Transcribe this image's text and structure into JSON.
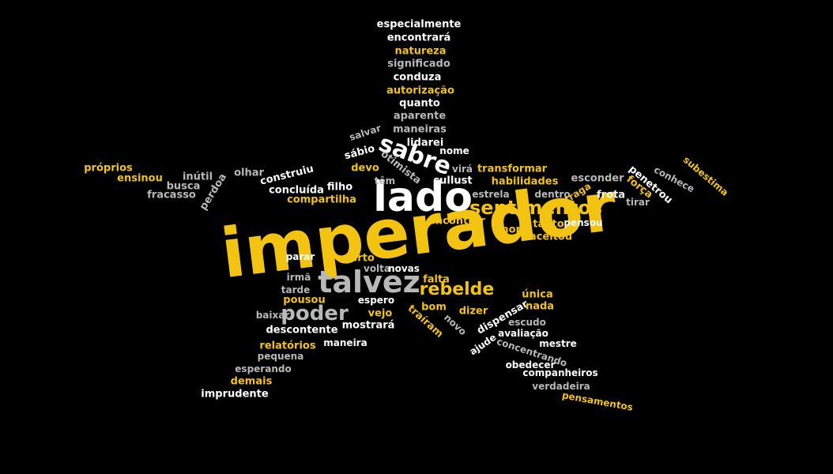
{
  "cloud": {
    "words": [
      {
        "text": "imperador",
        "color": "yellow"
      },
      {
        "text": "lado",
        "color": "white"
      },
      {
        "text": "talvez",
        "color": "gray"
      },
      {
        "text": "sentimentos",
        "color": "yellow"
      },
      {
        "text": "sabre",
        "color": "white"
      },
      {
        "text": "rebelde",
        "color": "yellow"
      },
      {
        "text": "poder",
        "color": "gray"
      },
      {
        "text": "especialmente",
        "color": "white"
      },
      {
        "text": "encontrará",
        "color": "white"
      },
      {
        "text": "natureza",
        "color": "yellow"
      },
      {
        "text": "significado",
        "color": "gray"
      },
      {
        "text": "conduza",
        "color": "white"
      },
      {
        "text": "autorização",
        "color": "yellow"
      },
      {
        "text": "quanto",
        "color": "white"
      },
      {
        "text": "aparente",
        "color": "gray"
      },
      {
        "text": "maneiras",
        "color": "gray"
      },
      {
        "text": "salvar",
        "color": "gray"
      },
      {
        "text": "lidarei",
        "color": "white"
      },
      {
        "text": "nome",
        "color": "white"
      },
      {
        "text": "sábio",
        "color": "white"
      },
      {
        "text": "otimista",
        "color": "gray"
      },
      {
        "text": "virá",
        "color": "gray"
      },
      {
        "text": "transformar",
        "color": "yellow"
      },
      {
        "text": "próprios",
        "color": "yellow"
      },
      {
        "text": "ensinou",
        "color": "yellow"
      },
      {
        "text": "inútil",
        "color": "gray"
      },
      {
        "text": "olhar",
        "color": "gray"
      },
      {
        "text": "construiu",
        "color": "white"
      },
      {
        "text": "devo",
        "color": "yellow"
      },
      {
        "text": "têm",
        "color": "gray"
      },
      {
        "text": "sullust",
        "color": "white"
      },
      {
        "text": "habilidades",
        "color": "yellow"
      },
      {
        "text": "esconder",
        "color": "gray"
      },
      {
        "text": "penetrou",
        "color": "white"
      },
      {
        "text": "conhece",
        "color": "gray"
      },
      {
        "text": "subestima",
        "color": "yellow"
      },
      {
        "text": "busca",
        "color": "gray"
      },
      {
        "text": "fracasso",
        "color": "gray"
      },
      {
        "text": "perdoa",
        "color": "gray"
      },
      {
        "text": "filho",
        "color": "white"
      },
      {
        "text": "concluída",
        "color": "white"
      },
      {
        "text": "compartilha",
        "color": "yellow"
      },
      {
        "text": "estrela",
        "color": "gray"
      },
      {
        "text": "dentro",
        "color": "gray"
      },
      {
        "text": "traga",
        "color": "yellow"
      },
      {
        "text": "frota",
        "color": "white"
      },
      {
        "text": "força",
        "color": "yellow"
      },
      {
        "text": "tirar",
        "color": "gray"
      },
      {
        "text": "pensou",
        "color": "white"
      },
      {
        "text": "encontrar",
        "color": "yellow"
      },
      {
        "text": "tanto",
        "color": "yellow"
      },
      {
        "text": "morte",
        "color": "yellow"
      },
      {
        "text": "aceitou",
        "color": "yellow"
      },
      {
        "text": "parar",
        "color": "white"
      },
      {
        "text": "perto",
        "color": "yellow"
      },
      {
        "text": "volta",
        "color": "gray"
      },
      {
        "text": "novas",
        "color": "white"
      },
      {
        "text": "irmã",
        "color": "gray"
      },
      {
        "text": "tarde",
        "color": "gray"
      },
      {
        "text": "falta",
        "color": "yellow"
      },
      {
        "text": "única",
        "color": "yellow"
      },
      {
        "text": "pousou",
        "color": "yellow"
      },
      {
        "text": "espero",
        "color": "white"
      },
      {
        "text": "bom",
        "color": "yellow"
      },
      {
        "text": "dizer",
        "color": "yellow"
      },
      {
        "text": "nada",
        "color": "yellow"
      },
      {
        "text": "baixar",
        "color": "gray"
      },
      {
        "text": "vejo",
        "color": "yellow"
      },
      {
        "text": "traíram",
        "color": "yellow"
      },
      {
        "text": "novo",
        "color": "gray"
      },
      {
        "text": "dispensar",
        "color": "white"
      },
      {
        "text": "escudo",
        "color": "gray"
      },
      {
        "text": "descontente",
        "color": "white"
      },
      {
        "text": "mostrará",
        "color": "white"
      },
      {
        "text": "avaliação",
        "color": "white"
      },
      {
        "text": "ajude",
        "color": "white"
      },
      {
        "text": "mestre",
        "color": "white"
      },
      {
        "text": "relatórios",
        "color": "yellow"
      },
      {
        "text": "maneira",
        "color": "white"
      },
      {
        "text": "concentrando",
        "color": "gray"
      },
      {
        "text": "pequena",
        "color": "gray"
      },
      {
        "text": "obedecer",
        "color": "white"
      },
      {
        "text": "esperando",
        "color": "gray"
      },
      {
        "text": "companheiros",
        "color": "white"
      },
      {
        "text": "demais",
        "color": "yellow"
      },
      {
        "text": "verdadeira",
        "color": "gray"
      },
      {
        "text": "imprudente",
        "color": "white"
      },
      {
        "text": "pensamentos",
        "color": "yellow"
      }
    ]
  }
}
